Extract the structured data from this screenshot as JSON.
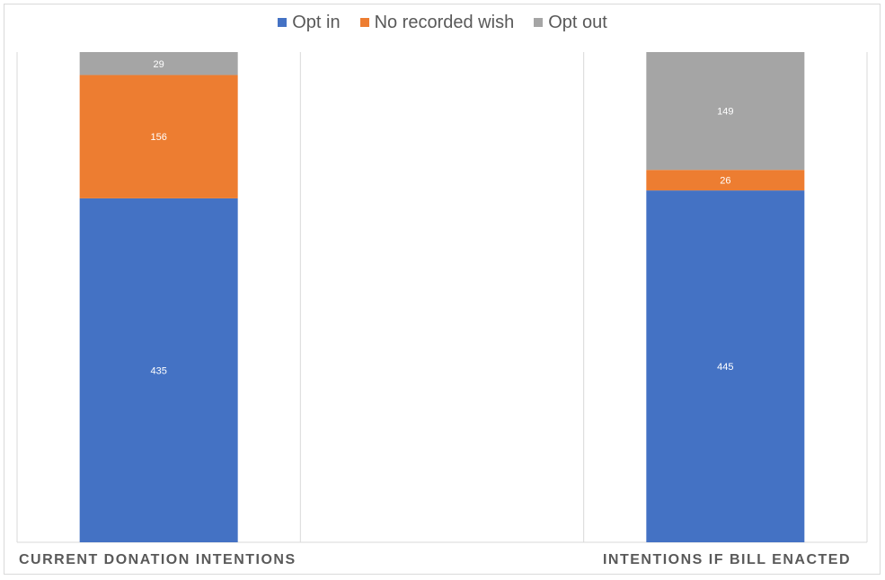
{
  "chart_data": {
    "type": "bar",
    "stacked": true,
    "title": "",
    "xlabel": "",
    "ylabel": "",
    "categories": [
      "CURRENT DONATION INTENTIONS",
      "INTENTIONS IF BILL ENACTED"
    ],
    "series": [
      {
        "name": "Opt in",
        "values": [
          435,
          445
        ],
        "color": "#4472c4"
      },
      {
        "name": "No recorded wish",
        "values": [
          156,
          26
        ],
        "color": "#ed7d31"
      },
      {
        "name": "Opt out",
        "values": [
          29,
          149
        ],
        "color": "#a5a5a5"
      }
    ],
    "ylim": [
      0,
      620
    ],
    "legend_position": "top-center",
    "grid": true
  }
}
